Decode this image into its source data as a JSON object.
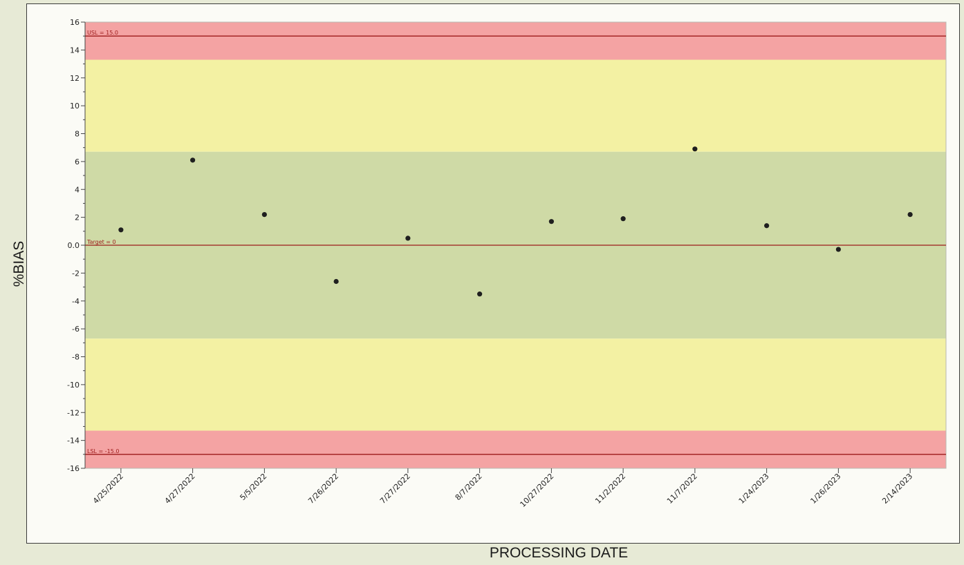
{
  "chart_data": {
    "type": "scatter",
    "title": "",
    "xlabel": "PROCESSING DATE",
    "ylabel": "%BIAS",
    "ylim": [
      -16,
      16
    ],
    "y_ticks": [
      16,
      14,
      12,
      10,
      8,
      6,
      4,
      2,
      0,
      -2,
      -4,
      -6,
      -8,
      -10,
      -12,
      -14,
      -16
    ],
    "y_tick_labels": [
      "16",
      "14",
      "12",
      "10",
      "8",
      "6",
      "4",
      "2",
      "0.0",
      "-2",
      "-4",
      "-6",
      "-8",
      "-10",
      "-12",
      "-14",
      "-16"
    ],
    "categories": [
      "4/25/2022",
      "4/27/2022",
      "5/5/2022",
      "7/26/2022",
      "7/27/2022",
      "8/7/2022",
      "10/27/2022",
      "11/2/2022",
      "11/7/2022",
      "1/24/2023",
      "1/26/2023",
      "2/14/2023"
    ],
    "series": [
      {
        "values": [
          1.1,
          6.1,
          2.2,
          -2.6,
          0.5,
          -3.5,
          1.7,
          1.9,
          6.9,
          1.4,
          -0.3,
          2.2
        ]
      }
    ],
    "reference_lines": [
      {
        "label": "USL = 15.0",
        "value": 15
      },
      {
        "label": "Target = 0",
        "value": 0
      },
      {
        "label": "LSL = -15.0",
        "value": -15
      }
    ],
    "zones": [
      {
        "from": 13.3,
        "to": 16,
        "color": "#f4a3a3"
      },
      {
        "from": 6.7,
        "to": 13.3,
        "color": "#f3f1a3"
      },
      {
        "from": -6.7,
        "to": 6.7,
        "color": "#cfdaa6"
      },
      {
        "from": -13.3,
        "to": -6.7,
        "color": "#f3f1a3"
      },
      {
        "from": -16,
        "to": -13.3,
        "color": "#f4a3a3"
      }
    ],
    "colors": {
      "marker": "#1f1f1f",
      "reference_line": "#9c1a1a",
      "axis": "#444444"
    },
    "grid": false,
    "legend": "none"
  }
}
